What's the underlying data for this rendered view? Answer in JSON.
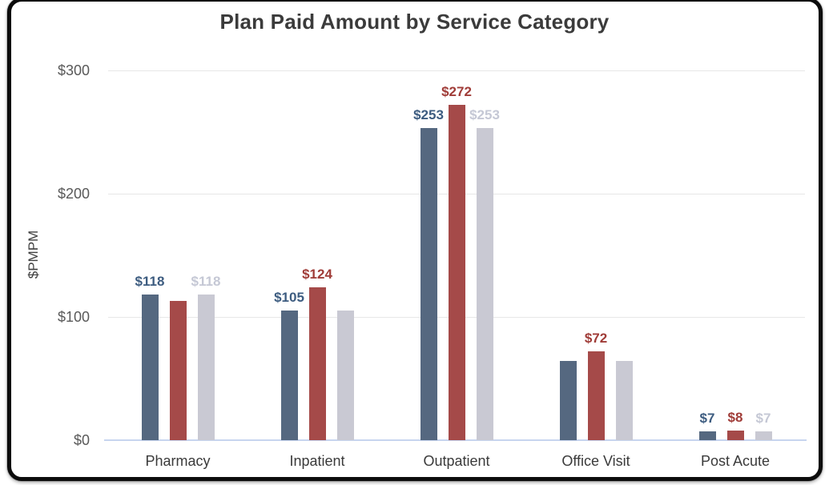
{
  "card": {
    "background": "#ffffff",
    "border_color": "#0c0c0c"
  },
  "chart_data": {
    "type": "bar",
    "title": "Plan Paid Amount by Service Category",
    "xlabel": "",
    "ylabel": "$PMPM",
    "categories": [
      "Pharmacy",
      "Inpatient",
      "Outpatient",
      "Office Visit",
      "Post Acute"
    ],
    "ylim": [
      0,
      300
    ],
    "yticks": [
      {
        "label": "$0",
        "value": 0
      },
      {
        "label": "$100",
        "value": 100
      },
      {
        "label": "$200",
        "value": 200
      },
      {
        "label": "$300",
        "value": 300
      }
    ],
    "grid": true,
    "legend_position": "none",
    "gridline_color": "#e7e7e7",
    "axis_line_color": "#c7d5ef",
    "series": [
      {
        "name": "blue",
        "color": "#556880",
        "label_color": "#3d5c80",
        "values": [
          118,
          105,
          253,
          64,
          7
        ],
        "labels": [
          "$118",
          "$105",
          "$253",
          "",
          "$7"
        ]
      },
      {
        "name": "red",
        "color": "#a54a49",
        "label_color": "#a03c38",
        "values": [
          113,
          124,
          272,
          72,
          8
        ],
        "labels": [
          "",
          "$124",
          "$272",
          "$72",
          "$8"
        ]
      },
      {
        "name": "gray",
        "color": "#c9c9d3",
        "label_color": "#c5c8d5",
        "values": [
          118,
          105,
          253,
          64,
          7
        ],
        "labels": [
          "$118",
          "",
          "$253",
          "",
          "$7"
        ]
      }
    ]
  }
}
